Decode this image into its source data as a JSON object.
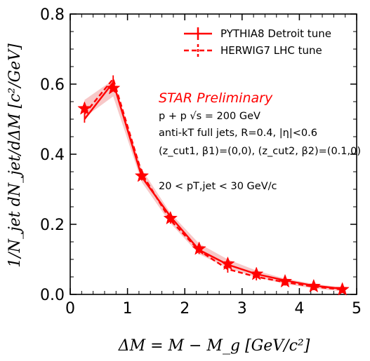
{
  "chart_data": {
    "type": "line",
    "title": "",
    "xlabel": "ΔM = M − M_g [GeV/c²]",
    "ylabel": "1/N_jet dN_jet/dΔM [c²/GeV]",
    "xlim": [
      0,
      5
    ],
    "ylim": [
      0,
      0.8
    ],
    "x_ticks": [
      "0",
      "1",
      "2",
      "3",
      "4",
      "5"
    ],
    "y_ticks": [
      "0.0",
      "0.2",
      "0.4",
      "0.6",
      "0.8"
    ],
    "legend_position": "top-right",
    "colors": {
      "accent": "#ff0000",
      "band": "#f4b6b6"
    },
    "x": [
      0.25,
      0.75,
      1.25,
      1.75,
      2.25,
      2.75,
      3.25,
      3.75,
      4.25,
      4.75
    ],
    "series": [
      {
        "name": "PYTHIA8 Detroit tune",
        "style": "solid",
        "values": [
          0.5,
          0.605,
          0.335,
          0.222,
          0.127,
          0.085,
          0.058,
          0.04,
          0.025,
          0.016
        ]
      },
      {
        "name": "HERWIG7 LHC tune",
        "style": "dashed",
        "values": [
          0.515,
          0.615,
          0.345,
          0.212,
          0.125,
          0.072,
          0.05,
          0.035,
          0.022,
          0.014
        ]
      },
      {
        "name": "STAR Preliminary",
        "style": "markers",
        "values": [
          0.53,
          0.588,
          0.338,
          0.217,
          0.13,
          0.087,
          0.058,
          0.037,
          0.023,
          0.014
        ],
        "band_low": [
          0.505,
          0.565,
          0.32,
          0.203,
          0.115,
          0.075,
          0.049,
          0.03,
          0.017,
          0.009
        ],
        "band_high": [
          0.555,
          0.612,
          0.357,
          0.232,
          0.145,
          0.1,
          0.068,
          0.045,
          0.03,
          0.02
        ]
      }
    ],
    "annotations": {
      "star": "STAR Preliminary",
      "line1": "p + p  √s = 200 GeV",
      "line2": "anti-kT full jets, R=0.4, |η|<0.6",
      "line3": "(z_cut1, β1)=(0,0), (z_cut2, β2)=(0.1,0)",
      "line4": "20 < pT,jet < 30 GeV/c"
    }
  }
}
